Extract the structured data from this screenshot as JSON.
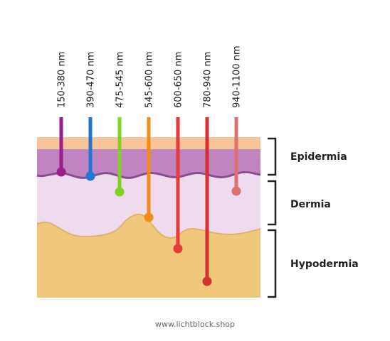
{
  "diagram": {
    "colors": {
      "epidermis_top": "#f8c49a",
      "epidermis": "#c084c0",
      "epidermis_edge": "#8e4b93",
      "dermis": "#eedbee",
      "hypodermis": "#efc87c",
      "hypodermis_edge": "#e0b36c",
      "bracket": "#222222"
    },
    "wavelengths": [
      {
        "label": "150-380 nm",
        "color": "#9b1f8a",
        "depth_layer": "epidermis"
      },
      {
        "label": "390-470 nm",
        "color": "#1e78d2",
        "depth_layer": "epidermis"
      },
      {
        "label": "475-545 nm",
        "color": "#7ed321",
        "depth_layer": "dermis"
      },
      {
        "label": "545-600 nm",
        "color": "#f28c17",
        "depth_layer": "dermis"
      },
      {
        "label": "600-650 nm",
        "color": "#e53b3b",
        "depth_layer": "hypodermis"
      },
      {
        "label": "780-940 nm",
        "color": "#d63030",
        "depth_layer": "hypodermis"
      },
      {
        "label": "940-1100 nm",
        "color": "#e07070",
        "depth_layer": "dermis"
      }
    ],
    "layers": [
      {
        "label": "Epidermia"
      },
      {
        "label": "Dermia"
      },
      {
        "label": "Hypodermia"
      }
    ]
  },
  "footer": {
    "text": "www.lichtblock.shop"
  }
}
